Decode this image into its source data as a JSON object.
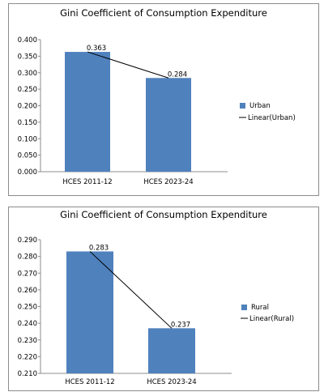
{
  "colors": {
    "bar": "#4f81bd",
    "trend": "#000000",
    "axis": "#8c8c8c"
  },
  "chart_data": [
    {
      "type": "bar",
      "title": "Gini Coefficient of Consumption Expenditure",
      "categories": [
        "HCES 2011-12",
        "HCES 2023-24"
      ],
      "series": [
        {
          "name": "Urban",
          "values": [
            0.363,
            0.284
          ]
        }
      ],
      "trendline": {
        "name": "Linear(Urban)",
        "type": "linear"
      },
      "data_labels": [
        "0.363",
        "0.284"
      ],
      "ylim": [
        0,
        0.4
      ],
      "yticks": [
        "0.000",
        "0.050",
        "0.100",
        "0.150",
        "0.200",
        "0.250",
        "0.300",
        "0.350",
        "0.400"
      ],
      "ytick_values": [
        0,
        0.05,
        0.1,
        0.15,
        0.2,
        0.25,
        0.3,
        0.35,
        0.4
      ],
      "grid": false,
      "legend": "right",
      "xlabel": "",
      "ylabel": ""
    },
    {
      "type": "bar",
      "title": "Gini Coefficient of Consumption Expenditure",
      "categories": [
        "HCES 2011-12",
        "HCES 2023-24"
      ],
      "series": [
        {
          "name": "Rural",
          "values": [
            0.283,
            0.237
          ]
        }
      ],
      "trendline": {
        "name": "Linear(Rural)",
        "type": "linear"
      },
      "data_labels": [
        "0.283",
        "0.237"
      ],
      "ylim": [
        0.21,
        0.29
      ],
      "yticks": [
        "0.210",
        "0.220",
        "0.230",
        "0.240",
        "0.250",
        "0.260",
        "0.270",
        "0.280",
        "0.290"
      ],
      "ytick_values": [
        0.21,
        0.22,
        0.23,
        0.24,
        0.25,
        0.26,
        0.27,
        0.28,
        0.29
      ],
      "grid": false,
      "legend": "right",
      "xlabel": "",
      "ylabel": ""
    }
  ]
}
